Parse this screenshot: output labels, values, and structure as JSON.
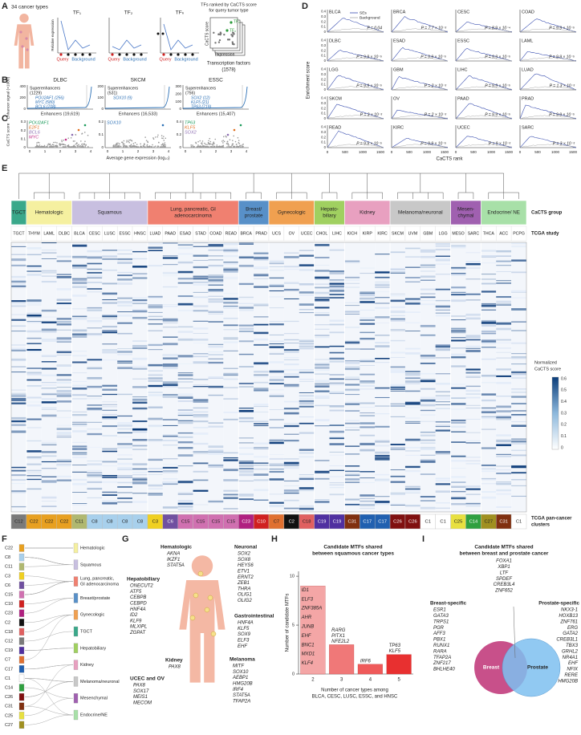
{
  "panel_labels": [
    "A",
    "B",
    "C",
    "D",
    "E",
    "F",
    "G",
    "H",
    "I"
  ],
  "a": {
    "title": "34 cancer types",
    "tf_labels": [
      "TF₁",
      "TF₂",
      "TFₙ"
    ],
    "y_label": "Relative expression",
    "query": "Query",
    "background": "Background",
    "ranked_title": [
      "TFs ranked by CaCTS score",
      "for query tumor type"
    ],
    "score_label": "CaCTS score",
    "expression_label": "Expression",
    "tf_axis": [
      "Transcription factors",
      "(1578)"
    ]
  },
  "b": {
    "y_label": "Enhancer signal (×1000)",
    "gene_color": "#2a6fb5",
    "panels": [
      {
        "name": "DLBC",
        "yticks": [
          "0",
          "200",
          "400"
        ],
        "se": [
          "Superenhancers",
          "(1229)"
        ],
        "genes": [
          "POU2AF1 (256)",
          "MYC (580)",
          "BCL6 (708)"
        ],
        "enhancers": "Enhancers (19,619)"
      },
      {
        "name": "SKCM",
        "yticks": [
          "0",
          "100",
          "200"
        ],
        "se": [
          "Superenhancers",
          "(531)"
        ],
        "genes": [
          "SOX10 (9)"
        ],
        "enhancers": "Enhancers (16,533)"
      },
      {
        "name": "ESSC",
        "yticks": [
          "0",
          "100",
          "200",
          "300"
        ],
        "se": [
          "Superenhancers",
          "(756)"
        ],
        "genes": [
          "SOX2 (12)",
          "KLF5 (21)",
          "TP63 (719)"
        ],
        "enhancers": "Enhancers (15,407)"
      }
    ]
  },
  "c": {
    "y_label": "CaCTS score",
    "x_label": "Average gene expression (log₁₀)",
    "xticks": [
      "0",
      "1",
      "2",
      "3",
      "4"
    ],
    "panels": [
      {
        "yticks": [
          "0",
          "0.1",
          "0.2",
          "0.3"
        ],
        "genes": [
          {
            "name": "POU2AF1",
            "color": "#1a9a5a"
          },
          {
            "name": "E2F1",
            "color": "#e07020"
          },
          {
            "name": "BCL6",
            "color": "#8a6bb0"
          },
          {
            "name": "MYC",
            "color": "#c0308a"
          }
        ]
      },
      {
        "yticks": [
          "0",
          "0.1",
          "0.2"
        ],
        "genes": [
          {
            "name": "SOX10",
            "color": "#2a6fb5"
          }
        ]
      },
      {
        "yticks": [
          "0",
          "0.2",
          "0.4"
        ],
        "genes": [
          {
            "name": "TP63",
            "color": "#1a9a5a"
          },
          {
            "name": "KLF5",
            "color": "#e07020"
          },
          {
            "name": "SOX2",
            "color": "#8a6bb0"
          }
        ]
      }
    ]
  },
  "d": {
    "y_label": "Enrichment score",
    "x_label": "CaCTS rank",
    "legend": [
      "SEs",
      "Background"
    ],
    "yticks": [
      "0",
      "0.1",
      "0.2",
      "0.3",
      "0.4"
    ],
    "xticks": [
      "0",
      "500",
      "1000",
      "1500"
    ],
    "panels": [
      {
        "name": "BLCA",
        "p": "P = 0.04"
      },
      {
        "name": "BRCA",
        "p": "P = 7.7 × 10⁻³"
      },
      {
        "name": "CESC",
        "p": "P = 8.9 × 10⁻⁴"
      },
      {
        "name": "COAD",
        "p": "P = 9.9 × 10⁻⁵"
      },
      {
        "name": "DLBC",
        "p": "P = 9.9 × 10⁻⁵"
      },
      {
        "name": "ESAD",
        "p": "P = 9.9 × 10⁻⁵"
      },
      {
        "name": "ESSC",
        "p": "P = 9.9 × 10⁻⁵"
      },
      {
        "name": "LAML",
        "p": "P = 9.9 × 10⁻⁵"
      },
      {
        "name": "LGG",
        "p": "P = 9.9 × 10⁻⁵"
      },
      {
        "name": "GBM",
        "p": "P = 2 × 10⁻³"
      },
      {
        "name": "LIHC",
        "p": "P = 9.9 × 10⁻⁵"
      },
      {
        "name": "LUAD",
        "p": "P = 1.3 × 10⁻³"
      },
      {
        "name": "SKCM",
        "p": "P = 3 × 10⁻³"
      },
      {
        "name": "OV",
        "p": "P = 2 × 10⁻³"
      },
      {
        "name": "PAAD",
        "p": "P = 9.9 × 10⁻⁵"
      },
      {
        "name": "PRAD",
        "p": "P = 9.9 × 10⁻⁵"
      },
      {
        "name": "READ",
        "p": "P = 9.9 × 10⁻⁵"
      },
      {
        "name": "KIRC",
        "p": "P = 9.9 × 10⁻⁵"
      },
      {
        "name": "UCEC",
        "p": "P = 9 × 10⁻³"
      },
      {
        "name": "SARC",
        "p": "P = 3 × 10⁻³"
      }
    ]
  },
  "e": {
    "row_labels": {
      "group": "CaCTS group",
      "study": "TCGA study",
      "clusters": [
        "TCGA pan-cancer",
        "clusters"
      ]
    },
    "colorbar_label": [
      "Normalized",
      "CaCTS score"
    ],
    "colorbar_ticks": [
      "0.6",
      "0.5",
      "0.4",
      "0.3",
      "0.2",
      "0.1",
      "0"
    ],
    "groups": [
      {
        "name": [
          "TGCT"
        ],
        "color": "#3aa88a",
        "studies": [
          "TGCT"
        ],
        "clusters": [
          {
            "name": "C12",
            "color": "#7a7a7a"
          }
        ]
      },
      {
        "name": [
          "Hematologic"
        ],
        "color": "#f5f0a0",
        "studies": [
          "THYM",
          "LAML",
          "DLBC"
        ],
        "clusters": [
          {
            "name": "C22",
            "color": "#e8a020"
          },
          {
            "name": "C22",
            "color": "#e8a020"
          },
          {
            "name": "C22",
            "color": "#e8a020"
          }
        ]
      },
      {
        "name": [
          "Squamous"
        ],
        "color": "#c8bfe0",
        "studies": [
          "BLCA",
          "CESC",
          "LUSC",
          "ESSC",
          "HNSC"
        ],
        "clusters": [
          {
            "name": "C11",
            "color": "#b0b870"
          },
          {
            "name": "C8",
            "color": "#a8d0ec"
          },
          {
            "name": "C8",
            "color": "#a8d0ec"
          },
          {
            "name": "C8",
            "color": "#a8d0ec"
          },
          {
            "name": "C8",
            "color": "#a8d0ec"
          }
        ]
      },
      {
        "name": [
          "Lung, pancreatic, GI",
          "adenocarcinoma"
        ],
        "color": "#f08070",
        "studies": [
          "LUAD",
          "PAAD",
          "ESAD",
          "STAD",
          "COAD",
          "READ"
        ],
        "clusters": [
          {
            "name": "C3",
            "color": "#f0d020"
          },
          {
            "name": "C6",
            "color": "#7050a0"
          },
          {
            "name": "C15",
            "color": "#d070b0"
          },
          {
            "name": "C15",
            "color": "#d070b0"
          },
          {
            "name": "C15",
            "color": "#d070b0"
          },
          {
            "name": "C15",
            "color": "#d070b0"
          }
        ]
      },
      {
        "name": [
          "Breast/",
          "prostate"
        ],
        "color": "#5890c8",
        "studies": [
          "BRCA",
          "PRAD"
        ],
        "clusters": [
          {
            "name": "C23",
            "color": "#b02080"
          },
          {
            "name": "C10",
            "color": "#d02020"
          }
        ]
      },
      {
        "name": [
          "Gynecologic"
        ],
        "color": "#f0a050",
        "studies": [
          "UCS",
          "OV",
          "UCEC"
        ],
        "clusters": [
          {
            "name": "C7",
            "color": "#e07030"
          },
          {
            "name": "C2",
            "color": "#111111"
          },
          {
            "name": "C18",
            "color": "#e06060"
          }
        ]
      },
      {
        "name": [
          "Hepato-",
          "biliary"
        ],
        "color": "#a0d060",
        "studies": [
          "CHOL",
          "LIHC"
        ],
        "clusters": [
          {
            "name": "C19",
            "color": "#5030a0"
          },
          {
            "name": "C19",
            "color": "#5030a0"
          }
        ]
      },
      {
        "name": [
          "Kidney"
        ],
        "color": "#e8a0c0",
        "studies": [
          "KICH",
          "KIRP",
          "KIRC"
        ],
        "clusters": [
          {
            "name": "C31",
            "color": "#803010"
          },
          {
            "name": "C17",
            "color": "#2060b0"
          },
          {
            "name": "C17",
            "color": "#2060b0"
          }
        ]
      },
      {
        "name": [
          "Melanoma/neuronal"
        ],
        "color": "#c8c8c8",
        "studies": [
          "SKCM",
          "UVM",
          "GBM",
          "LGG"
        ],
        "clusters": [
          {
            "name": "C26",
            "color": "#801010"
          },
          {
            "name": "C26",
            "color": "#801010"
          },
          {
            "name": "C1",
            "color": "#ffffff"
          },
          {
            "name": "C1",
            "color": "#ffffff"
          }
        ]
      },
      {
        "name": [
          "Mesen-",
          "chymal"
        ],
        "color": "#a060b0",
        "studies": [
          "MESO",
          "SARC"
        ],
        "clusters": [
          {
            "name": "C25",
            "color": "#e8e040"
          },
          {
            "name": "C14",
            "color": "#30a040"
          }
        ]
      },
      {
        "name": [
          "Endocrine/ NE"
        ],
        "color": "#a8e0a8",
        "studies": [
          "THCA",
          "ACC",
          "PCPG"
        ],
        "clusters": [
          {
            "name": "C27",
            "color": "#a09020"
          },
          {
            "name": "C31",
            "color": "#803010"
          },
          {
            "name": "C1",
            "color": "#ffffff"
          }
        ]
      }
    ]
  },
  "f": {
    "clusters": [
      "C22",
      "C8",
      "C11",
      "C3",
      "C6",
      "C15",
      "C10",
      "C23",
      "C2",
      "C18",
      "C12",
      "C19",
      "C7",
      "C17",
      "C1",
      "C14",
      "C26",
      "C31",
      "C25",
      "C27"
    ],
    "groups": [
      {
        "name": [
          "Hematologic"
        ],
        "color": "#f5f0a0"
      },
      {
        "name": [
          "Squamous"
        ],
        "color": "#c8bfe0"
      },
      {
        "name": [
          "Lung, pancreatic,",
          "GI adenocarcinoma"
        ],
        "color": "#f08070"
      },
      {
        "name": [
          "Breast/prostate"
        ],
        "color": "#5890c8"
      },
      {
        "name": [
          "Gynecologic"
        ],
        "color": "#f0a050"
      },
      {
        "name": [
          "TGCT"
        ],
        "color": "#3aa88a"
      },
      {
        "name": [
          "Hepatobiliary"
        ],
        "color": "#a0d060"
      },
      {
        "name": [
          "Kidney"
        ],
        "color": "#e8a0c0"
      },
      {
        "name": [
          "Melanoma/neuronal"
        ],
        "color": "#c8c8c8"
      },
      {
        "name": [
          "Mesenchymal"
        ],
        "color": "#a060b0"
      },
      {
        "name": [
          "Endocrine/NE"
        ],
        "color": "#a8e0a8"
      }
    ]
  },
  "g": {
    "groups": [
      {
        "name": "Hematologic",
        "genes": [
          "AKNA",
          "IKZF1",
          "STAT5A"
        ]
      },
      {
        "name": "Hepatobiliary",
        "genes": [
          "ONECUT2",
          "ATF5",
          "CEBPB",
          "CEBPD",
          "HNF4A",
          "ID2",
          "KLF9",
          "MLXIPL",
          "ZGPAT"
        ]
      },
      {
        "name": "Kidney",
        "genes": [
          "PAX8"
        ]
      },
      {
        "name": "UCEC and OV",
        "genes": [
          "PAX8",
          "SOX17",
          "MEIS1",
          "MECOM"
        ]
      },
      {
        "name": "Neuronal",
        "genes": [
          "SOX2",
          "SOX8",
          "HEYS6",
          "ETV1",
          "ERNT2",
          "ZEB1",
          "THRA",
          "OLIG1",
          "OLIG2"
        ]
      },
      {
        "name": "Gastrointestinal",
        "genes": [
          "HNF4A",
          "KLF5",
          "SOX9",
          "ELF3",
          "EHF"
        ]
      },
      {
        "name": "Melanoma",
        "genes": [
          "MITF",
          "SOX10",
          "AEBP1",
          "HMG20B",
          "IRF4",
          "STAT5A",
          "TFAP2A"
        ]
      }
    ]
  },
  "h": {
    "title": [
      "Candidate MTFs shared",
      "between squamous cancer types"
    ],
    "y_label": "Number of candidate MTFs",
    "x_label": [
      "Number of cancer types among",
      "BLCA, CESC, LUSC, ESSC, and HNSC"
    ],
    "categories": [
      "2",
      "3",
      "4",
      "5"
    ],
    "values": [
      9,
      3,
      1,
      2
    ],
    "colors": [
      "#f4a6a6",
      "#f07878",
      "#ef5a5a",
      "#e83030"
    ],
    "genes": [
      [
        "ID1",
        "ELF3",
        "ZNF385A",
        "AHR",
        "JUNB",
        "EHF",
        "BNC1",
        "MXD1",
        "KLF4"
      ],
      [
        "RARG",
        "PITX1",
        "NFE2L2"
      ],
      [
        "IRF6"
      ],
      [
        "TP63",
        "KLF5"
      ]
    ],
    "ylim": [
      0,
      10.5
    ],
    "yticks": [
      0,
      5,
      10
    ]
  },
  "i": {
    "title": [
      "Candidate MTFs shared",
      "between breast and prostate cancer"
    ],
    "shared": [
      "FOXA1",
      "XBP1",
      "LTF",
      "SPDEF",
      "CREB3L4",
      "ZNF652"
    ],
    "breast_header": "Breast-specific",
    "breast": [
      "ESR1",
      "GATA3",
      "TRPS1",
      "PGR",
      "AFF3",
      "PBX1",
      "RUNX1",
      "RARA",
      "TFAP2A",
      "ZNF217",
      "BHLHE40"
    ],
    "prostate_header": "Prostate-specific",
    "prostate": [
      "NKX3-1",
      "HOXB13",
      "ZNF761",
      "ERG",
      "GATA2",
      "CREB3L1",
      "TBX3",
      "GRHL2",
      "NR4A1",
      "EHF",
      "NFIX",
      "RERE",
      "HMG20B"
    ],
    "breast_label": "Breast",
    "prostate_label": "Prostate"
  }
}
